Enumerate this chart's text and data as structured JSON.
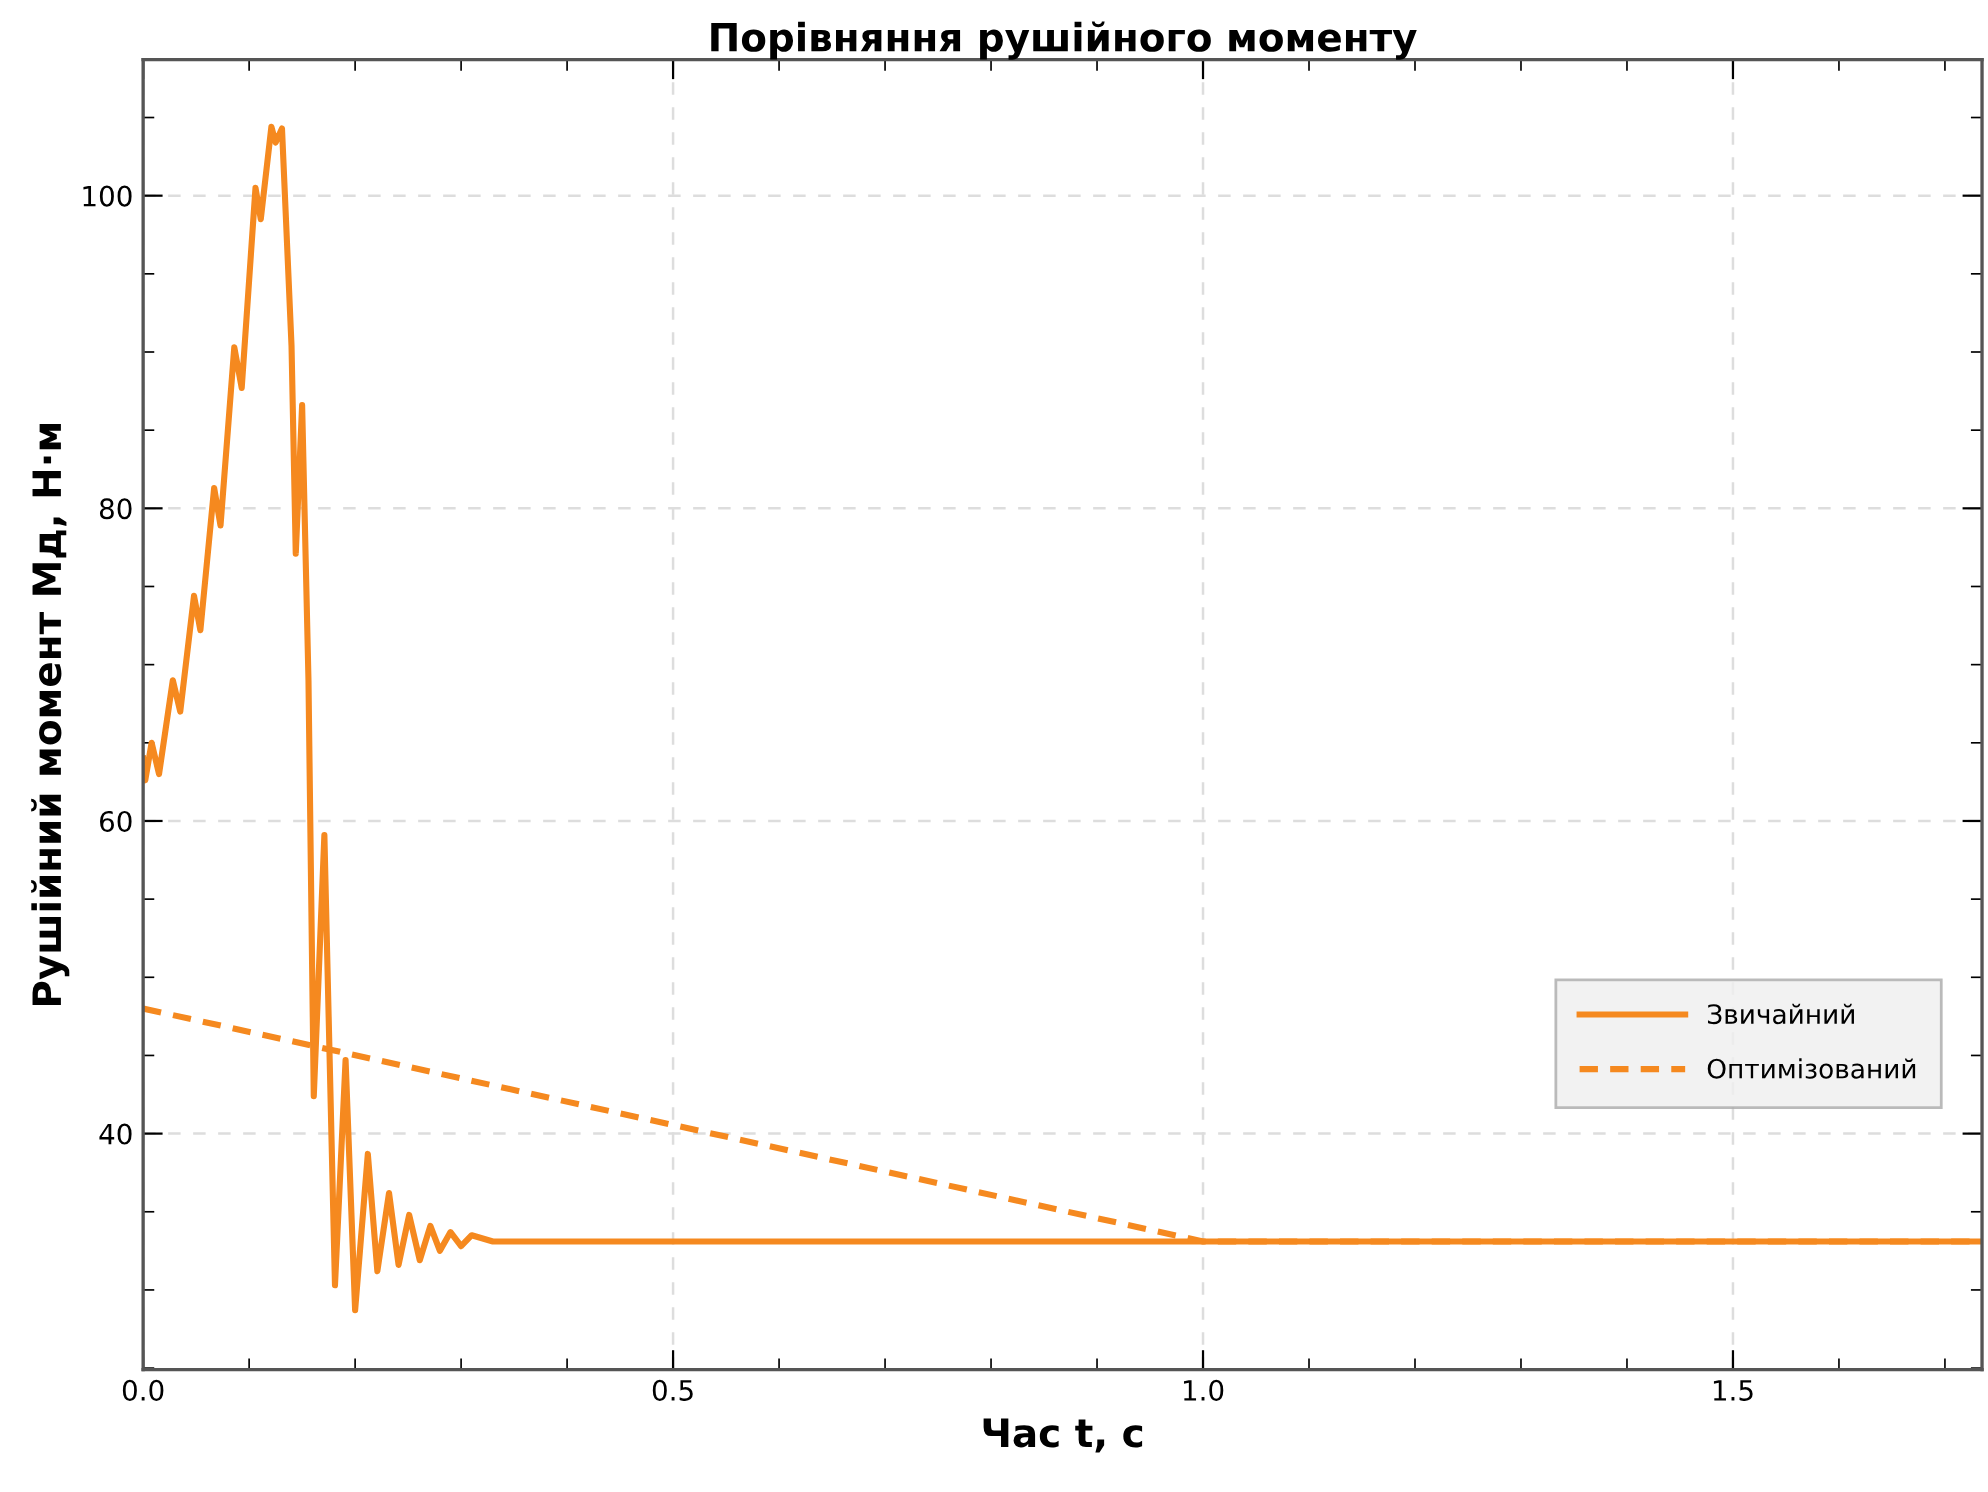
{
  "chart_data": {
    "type": "line",
    "title": "Порівняння рушійного моменту",
    "xlabel": "Час t, c",
    "ylabel": "Рушійний момент Мд, Н·м",
    "xlim": [
      0,
      1.735
    ],
    "ylim": [
      24.9,
      108.7
    ],
    "xticks": [
      {
        "value": 0,
        "label": "0.0"
      },
      {
        "value": 0.1,
        "label": null
      },
      {
        "value": 0.2,
        "label": null
      },
      {
        "value": 0.3,
        "label": null
      },
      {
        "value": 0.4,
        "label": null
      },
      {
        "value": 0.5,
        "label": "0.5"
      },
      {
        "value": 0.6,
        "label": null
      },
      {
        "value": 0.7,
        "label": null
      },
      {
        "value": 0.8,
        "label": null
      },
      {
        "value": 0.9,
        "label": null
      },
      {
        "value": 1.0,
        "label": "1.0"
      },
      {
        "value": 1.1,
        "label": null
      },
      {
        "value": 1.2,
        "label": null
      },
      {
        "value": 1.3,
        "label": null
      },
      {
        "value": 1.4,
        "label": null
      },
      {
        "value": 1.5,
        "label": "1.5"
      },
      {
        "value": 1.6,
        "label": null
      },
      {
        "value": 1.7,
        "label": null
      }
    ],
    "yticks": [
      {
        "value": 25,
        "label": null
      },
      {
        "value": 30,
        "label": null
      },
      {
        "value": 35,
        "label": null
      },
      40,
      {
        "value": 45,
        "label": null
      },
      {
        "value": 50,
        "label": null
      },
      {
        "value": 55,
        "label": null
      },
      60,
      {
        "value": 65,
        "label": null
      },
      {
        "value": 70,
        "label": null
      },
      {
        "value": 75,
        "label": null
      },
      80,
      {
        "value": 85,
        "label": null
      },
      {
        "value": 90,
        "label": null
      },
      {
        "value": 95,
        "label": null
      },
      100,
      {
        "value": 105,
        "label": null
      }
    ],
    "grid": true,
    "legend": "right",
    "series": [
      {
        "name": "Звичайний",
        "color": "#f5891f",
        "line_style": "solid",
        "x": [
          0,
          0.002,
          0.008,
          0.015,
          0.028,
          0.035,
          0.048,
          0.054,
          0.067,
          0.073,
          0.086,
          0.093,
          0.106,
          0.111,
          0.121,
          0.125,
          0.131,
          0.14,
          0.144,
          0.15,
          0.156,
          0.161,
          0.171,
          0.181,
          0.191,
          0.2,
          0.212,
          0.221,
          0.232,
          0.241,
          0.251,
          0.261,
          0.271,
          0.28,
          0.29,
          0.3,
          0.31,
          0.33,
          0.4,
          1.0,
          1.735
        ],
        "values": [
          64,
          62.6,
          65,
          63.0,
          69.0,
          67.0,
          74.4,
          72.2,
          81.3,
          78.9,
          90.3,
          87.7,
          100.5,
          98.5,
          104.4,
          103.4,
          104.3,
          90.4,
          77.1,
          86.6,
          69.0,
          42.4,
          59.1,
          30.3,
          44.7,
          28.7,
          38.7,
          31.2,
          36.2,
          31.6,
          34.8,
          31.9,
          34.1,
          32.5,
          33.7,
          32.8,
          33.5,
          33.1,
          33.1,
          33.1,
          33.1
        ]
      },
      {
        "name": "Оптимізований",
        "color": "#f5891f",
        "line_style": "dashed",
        "x": [
          0,
          1.0,
          1.735
        ],
        "values": [
          48,
          33.1,
          33.1
        ]
      }
    ]
  }
}
